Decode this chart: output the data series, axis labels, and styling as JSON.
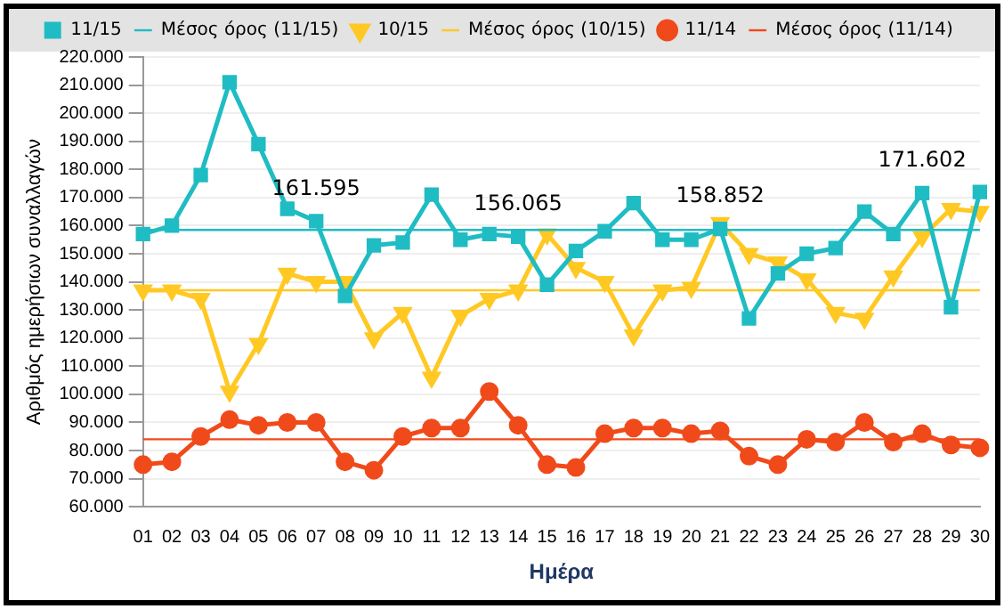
{
  "chart_data": {
    "type": "line",
    "xlabel": "Ημέρα",
    "ylabel": "Αριθμός ημερήσιων συναλλαγών",
    "categories": [
      "01",
      "02",
      "03",
      "04",
      "05",
      "06",
      "07",
      "08",
      "09",
      "10",
      "11",
      "12",
      "13",
      "14",
      "15",
      "16",
      "17",
      "18",
      "19",
      "20",
      "21",
      "22",
      "23",
      "24",
      "25",
      "26",
      "27",
      "28",
      "29",
      "30"
    ],
    "series": [
      {
        "name": "11/15",
        "color": "#1fbcc3",
        "marker": "square",
        "values": [
          157000,
          160000,
          178000,
          211000,
          189000,
          166000,
          161595,
          135000,
          153000,
          154000,
          171000,
          155000,
          157000,
          156065,
          139000,
          151000,
          158000,
          168000,
          155000,
          155000,
          158852,
          127000,
          143000,
          150000,
          152000,
          165000,
          157000,
          171602,
          131000,
          172000
        ],
        "value_labels": [
          null,
          null,
          null,
          null,
          null,
          null,
          "161.595",
          null,
          null,
          null,
          null,
          null,
          null,
          "156.065",
          null,
          null,
          null,
          null,
          null,
          null,
          "158.852",
          null,
          null,
          null,
          null,
          null,
          null,
          "171.602",
          null,
          null
        ]
      },
      {
        "name": "Μέσος όρος (11/15)",
        "color": "#1fbcc3",
        "marker": "none",
        "values": [
          158500,
          158500,
          158500,
          158500,
          158500,
          158500,
          158500,
          158500,
          158500,
          158500,
          158500,
          158500,
          158500,
          158500,
          158500,
          158500,
          158500,
          158500,
          158500,
          158500,
          158500,
          158500,
          158500,
          158500,
          158500,
          158500,
          158500,
          158500,
          158500,
          158500
        ]
      },
      {
        "name": "10/15",
        "color": "#ffc823",
        "marker": "triangle",
        "values": [
          137000,
          137000,
          134000,
          101000,
          118000,
          143000,
          140000,
          140000,
          120000,
          129000,
          106000,
          128000,
          134000,
          137000,
          157000,
          145000,
          140000,
          121000,
          137000,
          138000,
          161000,
          150000,
          147000,
          141000,
          129000,
          127000,
          142000,
          156000,
          166000,
          165000
        ]
      },
      {
        "name": "Μέσος όρος (10/15)",
        "color": "#ffc823",
        "marker": "none",
        "values": [
          137000,
          137000,
          137000,
          137000,
          137000,
          137000,
          137000,
          137000,
          137000,
          137000,
          137000,
          137000,
          137000,
          137000,
          137000,
          137000,
          137000,
          137000,
          137000,
          137000,
          137000,
          137000,
          137000,
          137000,
          137000,
          137000,
          137000,
          137000,
          137000,
          137000
        ]
      },
      {
        "name": "11/14",
        "color": "#f04a1b",
        "marker": "circle",
        "values": [
          75000,
          76000,
          85000,
          91000,
          89000,
          90000,
          90000,
          76000,
          73000,
          85000,
          88000,
          88000,
          101000,
          89000,
          75000,
          74000,
          86000,
          88000,
          88000,
          86000,
          87000,
          78000,
          75000,
          84000,
          83000,
          90000,
          83000,
          86000,
          82000,
          81000
        ]
      },
      {
        "name": "Μέσος όρος (11/14)",
        "color": "#f04a1b",
        "marker": "none",
        "values": [
          84000,
          84000,
          84000,
          84000,
          84000,
          84000,
          84000,
          84000,
          84000,
          84000,
          84000,
          84000,
          84000,
          84000,
          84000,
          84000,
          84000,
          84000,
          84000,
          84000,
          84000,
          84000,
          84000,
          84000,
          84000,
          84000,
          84000,
          84000,
          84000,
          84000
        ]
      }
    ],
    "ylim": [
      60000,
      220000
    ],
    "yticks": [
      {
        "value": 60000,
        "label": "60.000"
      },
      {
        "value": 70000,
        "label": "70.000"
      },
      {
        "value": 80000,
        "label": "80.000"
      },
      {
        "value": 90000,
        "label": "90.000"
      },
      {
        "value": 100000,
        "label": "100.000"
      },
      {
        "value": 110000,
        "label": "110.000"
      },
      {
        "value": 120000,
        "label": "120.000"
      },
      {
        "value": 130000,
        "label": "130.000"
      },
      {
        "value": 140000,
        "label": "140.000"
      },
      {
        "value": 150000,
        "label": "150.000"
      },
      {
        "value": 160000,
        "label": "160.000"
      },
      {
        "value": 170000,
        "label": "170.000"
      },
      {
        "value": 180000,
        "label": "180.000"
      },
      {
        "value": 190000,
        "label": "190.000"
      },
      {
        "value": 200000,
        "label": "200.000"
      },
      {
        "value": 210000,
        "label": "210.000"
      },
      {
        "value": 220000,
        "label": "220.000"
      }
    ],
    "grid": "y",
    "legend": "top"
  }
}
